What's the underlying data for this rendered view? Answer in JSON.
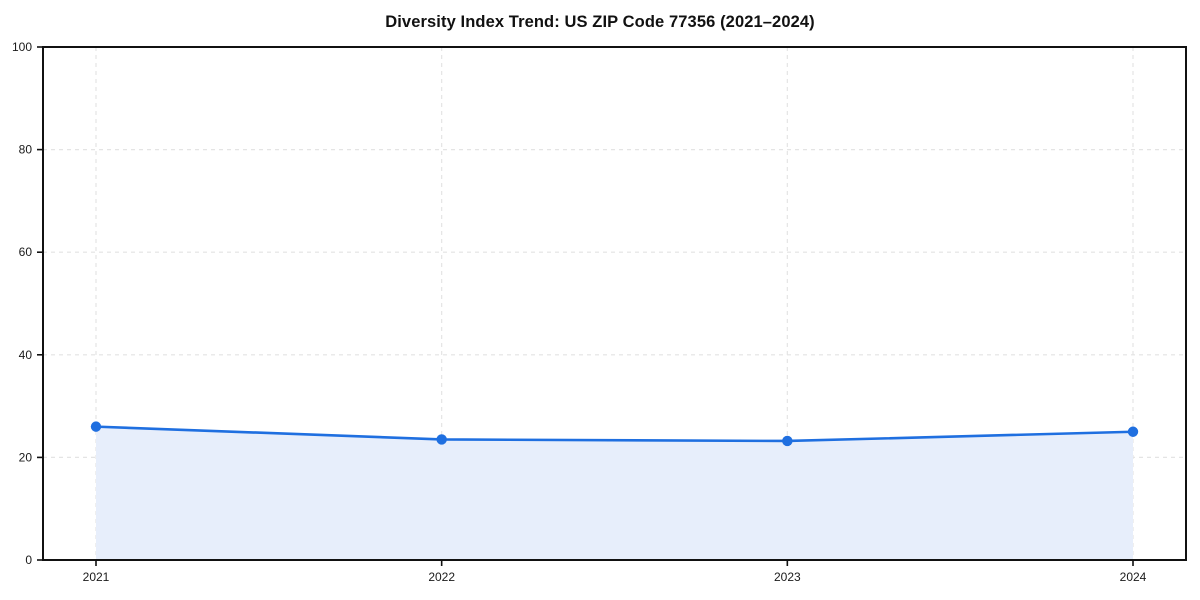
{
  "chart_data": {
    "type": "area",
    "title": "Diversity Index Trend: US ZIP Code 77356 (2021–2024)",
    "x": [
      "2021",
      "2022",
      "2023",
      "2024"
    ],
    "series": [
      {
        "name": "Diversity Index",
        "values": [
          26,
          23.5,
          23.2,
          25
        ]
      }
    ],
    "xlabel": "",
    "ylabel": "",
    "ylim": [
      0,
      100
    ],
    "yticks": [
      0,
      20,
      40,
      60,
      80,
      100
    ],
    "grid": "dashed, both axes",
    "legend": "none",
    "colors": {
      "line": "#1f6fe0",
      "marker": "#1f6fe0",
      "area_fill": "#e7eefb",
      "gridline": "#e4e4e4",
      "spine": "#111111",
      "tick_label": "#1a1a1a",
      "background": "#ffffff"
    }
  }
}
